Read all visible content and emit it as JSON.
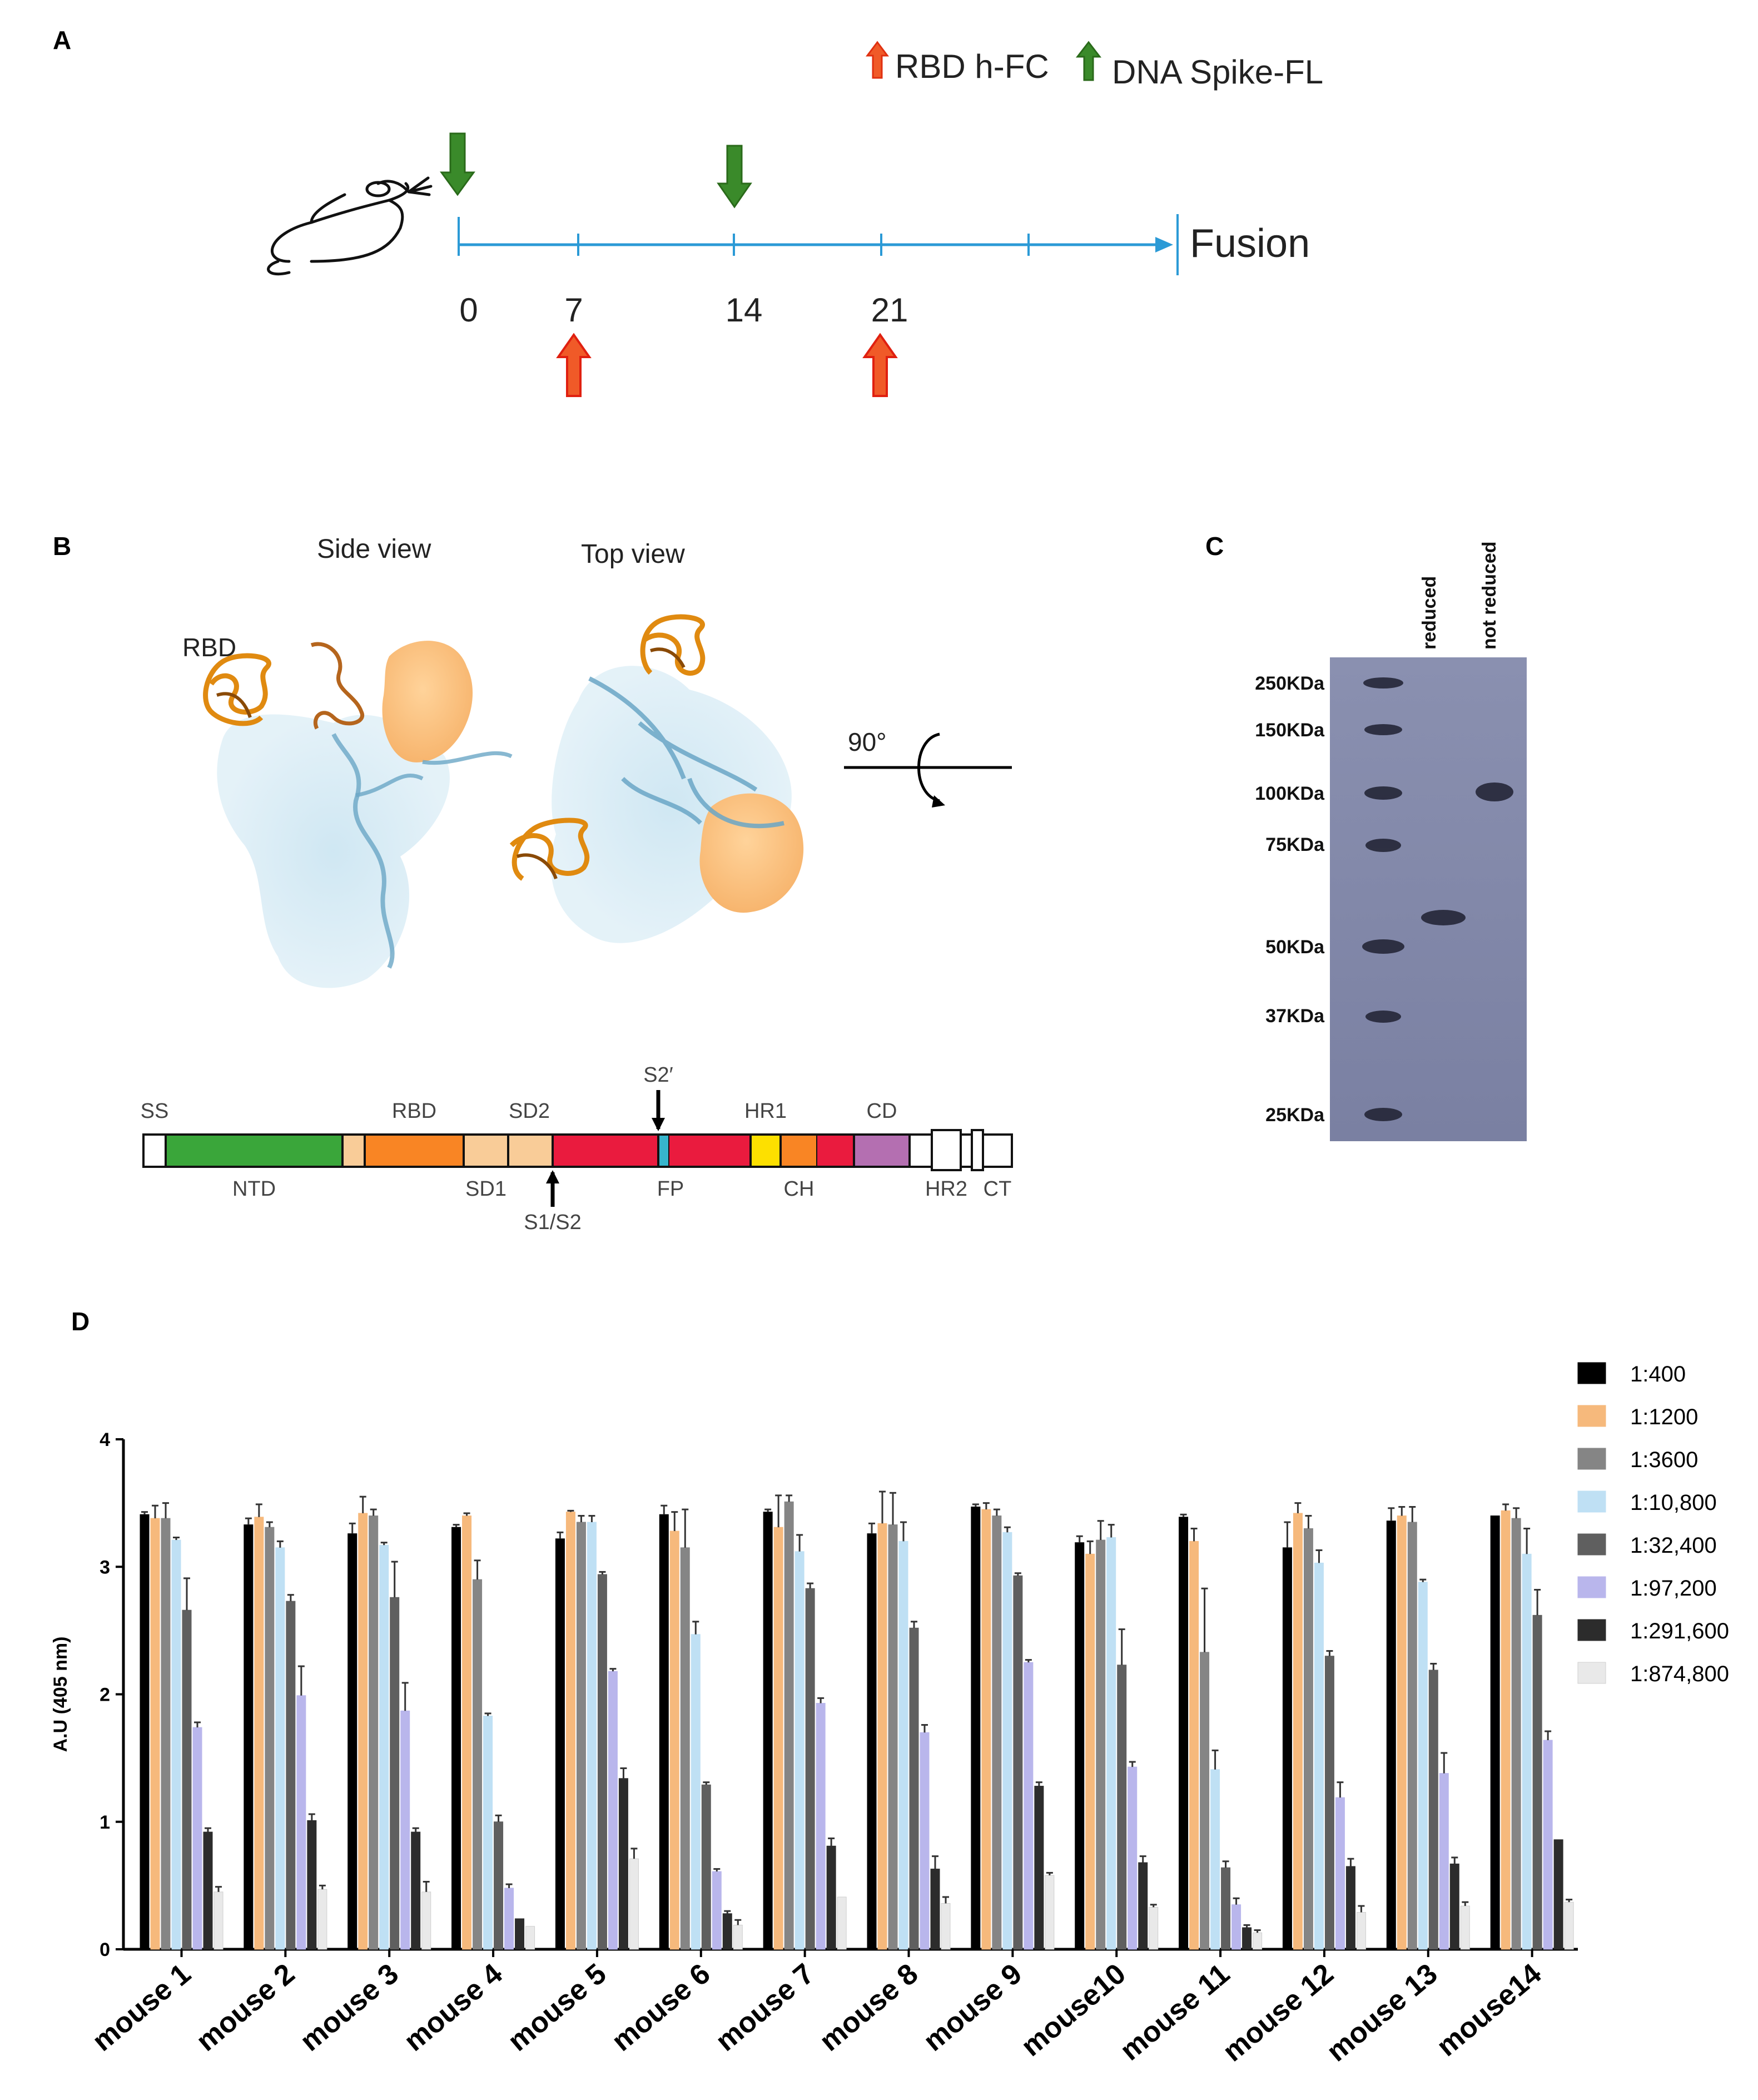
{
  "panelA": {
    "letter": "A",
    "legend_rbd": "RBD h-FC",
    "legend_dna": "DNA Spike-FL",
    "fusion": "Fusion",
    "days": [
      "0",
      "7",
      "14",
      "21"
    ],
    "green_arrow_days": [
      0,
      14
    ],
    "red_arrow_days": [
      7,
      21
    ],
    "colors": {
      "green": "#3a8a2a",
      "orange": "#f05a28",
      "line": "#2b9ad6"
    }
  },
  "panelB": {
    "letter": "B",
    "side_view": "Side view",
    "top_view": "Top view",
    "rbd_label": "RBD",
    "rotation": "90°",
    "domains_top": [
      "SS",
      "RBD",
      "SD2",
      "S2′",
      "HR1",
      "CD"
    ],
    "domains_bottom": [
      "NTD",
      "SD1",
      "S1/S2",
      "FP",
      "CH",
      "HR2",
      "CT"
    ]
  },
  "panelC": {
    "letter": "C",
    "lanes": [
      "reduced",
      "not reduced"
    ],
    "markers": [
      "250KDa",
      "150KDa",
      "100KDa",
      "75KDa",
      "50KDa",
      "37KDa",
      "25KDa"
    ]
  },
  "panelD": {
    "letter": "D"
  },
  "chart_data": {
    "type": "bar",
    "title": "",
    "xlabel": "",
    "ylabel": "A.U (405 nm)",
    "ylim": [
      0,
      4
    ],
    "yticks": [
      "0",
      "1",
      "2",
      "3",
      "4"
    ],
    "categories": [
      "mouse 1",
      "mouse 2",
      "mouse 3",
      "mouse 4",
      "mouse 5",
      "mouse 6",
      "mouse 7",
      "mouse 8",
      "mouse 9",
      "mouse10",
      "mouse 11",
      "mouse 12",
      "mouse 13",
      "mouse14"
    ],
    "series": [
      {
        "name": "1:400",
        "color": "#000000",
        "values": [
          3.41,
          3.33,
          3.26,
          3.31,
          3.22,
          3.41,
          3.43,
          3.26,
          3.47,
          3.19,
          3.39,
          3.15,
          3.36,
          3.4
        ],
        "errors": [
          0.02,
          0.05,
          0.08,
          0.02,
          0.05,
          0.07,
          0.02,
          0.08,
          0.02,
          0.05,
          0.02,
          0.2,
          0.1,
          0.0
        ]
      },
      {
        "name": "1:1200",
        "color": "#f6b97c",
        "values": [
          3.38,
          3.39,
          3.42,
          3.4,
          3.43,
          3.28,
          3.31,
          3.34,
          3.45,
          3.1,
          3.2,
          3.42,
          3.4,
          3.44
        ],
        "errors": [
          0.1,
          0.1,
          0.13,
          0.02,
          0.01,
          0.15,
          0.25,
          0.25,
          0.05,
          0.1,
          0.1,
          0.08,
          0.07,
          0.05
        ]
      },
      {
        "name": "1:3600",
        "color": "#858585",
        "values": [
          3.38,
          3.31,
          3.4,
          2.9,
          3.35,
          3.15,
          3.51,
          3.33,
          3.4,
          3.21,
          2.33,
          3.3,
          3.35,
          3.38
        ],
        "errors": [
          0.12,
          0.04,
          0.05,
          0.15,
          0.05,
          0.3,
          0.05,
          0.25,
          0.05,
          0.15,
          0.5,
          0.1,
          0.12,
          0.08
        ]
      },
      {
        "name": "1:10,800",
        "color": "#bfe0f4",
        "values": [
          3.21,
          3.15,
          3.17,
          1.83,
          3.35,
          2.47,
          3.12,
          3.2,
          3.27,
          3.23,
          1.41,
          3.03,
          2.88,
          3.1
        ],
        "errors": [
          0.02,
          0.05,
          0.02,
          0.02,
          0.05,
          0.1,
          0.13,
          0.15,
          0.04,
          0.1,
          0.15,
          0.1,
          0.02,
          0.2
        ]
      },
      {
        "name": "1:32,400",
        "color": "#5f5f5f",
        "values": [
          2.66,
          2.73,
          2.76,
          1.0,
          2.94,
          1.29,
          2.83,
          2.52,
          2.93,
          2.23,
          0.64,
          2.3,
          2.19,
          2.62
        ],
        "errors": [
          0.25,
          0.05,
          0.28,
          0.05,
          0.02,
          0.02,
          0.04,
          0.05,
          0.02,
          0.28,
          0.05,
          0.04,
          0.05,
          0.2
        ]
      },
      {
        "name": "1:97,200",
        "color": "#b9b6ec",
        "values": [
          1.74,
          1.99,
          1.87,
          0.48,
          2.18,
          0.61,
          1.93,
          1.7,
          2.25,
          1.43,
          0.35,
          1.19,
          1.38,
          1.64
        ],
        "errors": [
          0.04,
          0.23,
          0.22,
          0.03,
          0.02,
          0.02,
          0.04,
          0.06,
          0.02,
          0.04,
          0.05,
          0.12,
          0.16,
          0.07
        ]
      },
      {
        "name": "1:291,600",
        "color": "#2c2c2c",
        "values": [
          0.92,
          1.01,
          0.92,
          0.24,
          1.34,
          0.28,
          0.81,
          0.63,
          1.28,
          0.68,
          0.17,
          0.65,
          0.67,
          0.86
        ],
        "errors": [
          0.03,
          0.05,
          0.03,
          0.0,
          0.08,
          0.02,
          0.06,
          0.1,
          0.03,
          0.05,
          0.02,
          0.06,
          0.05,
          0.0
        ]
      },
      {
        "name": "1:874,800",
        "color": "#e9e9e9",
        "values": [
          0.45,
          0.47,
          0.45,
          0.18,
          0.71,
          0.19,
          0.41,
          0.36,
          0.58,
          0.33,
          0.13,
          0.29,
          0.34,
          0.37
        ],
        "errors": [
          0.04,
          0.03,
          0.08,
          0.0,
          0.08,
          0.04,
          0.0,
          0.05,
          0.02,
          0.02,
          0.02,
          0.05,
          0.03,
          0.02
        ]
      }
    ]
  }
}
